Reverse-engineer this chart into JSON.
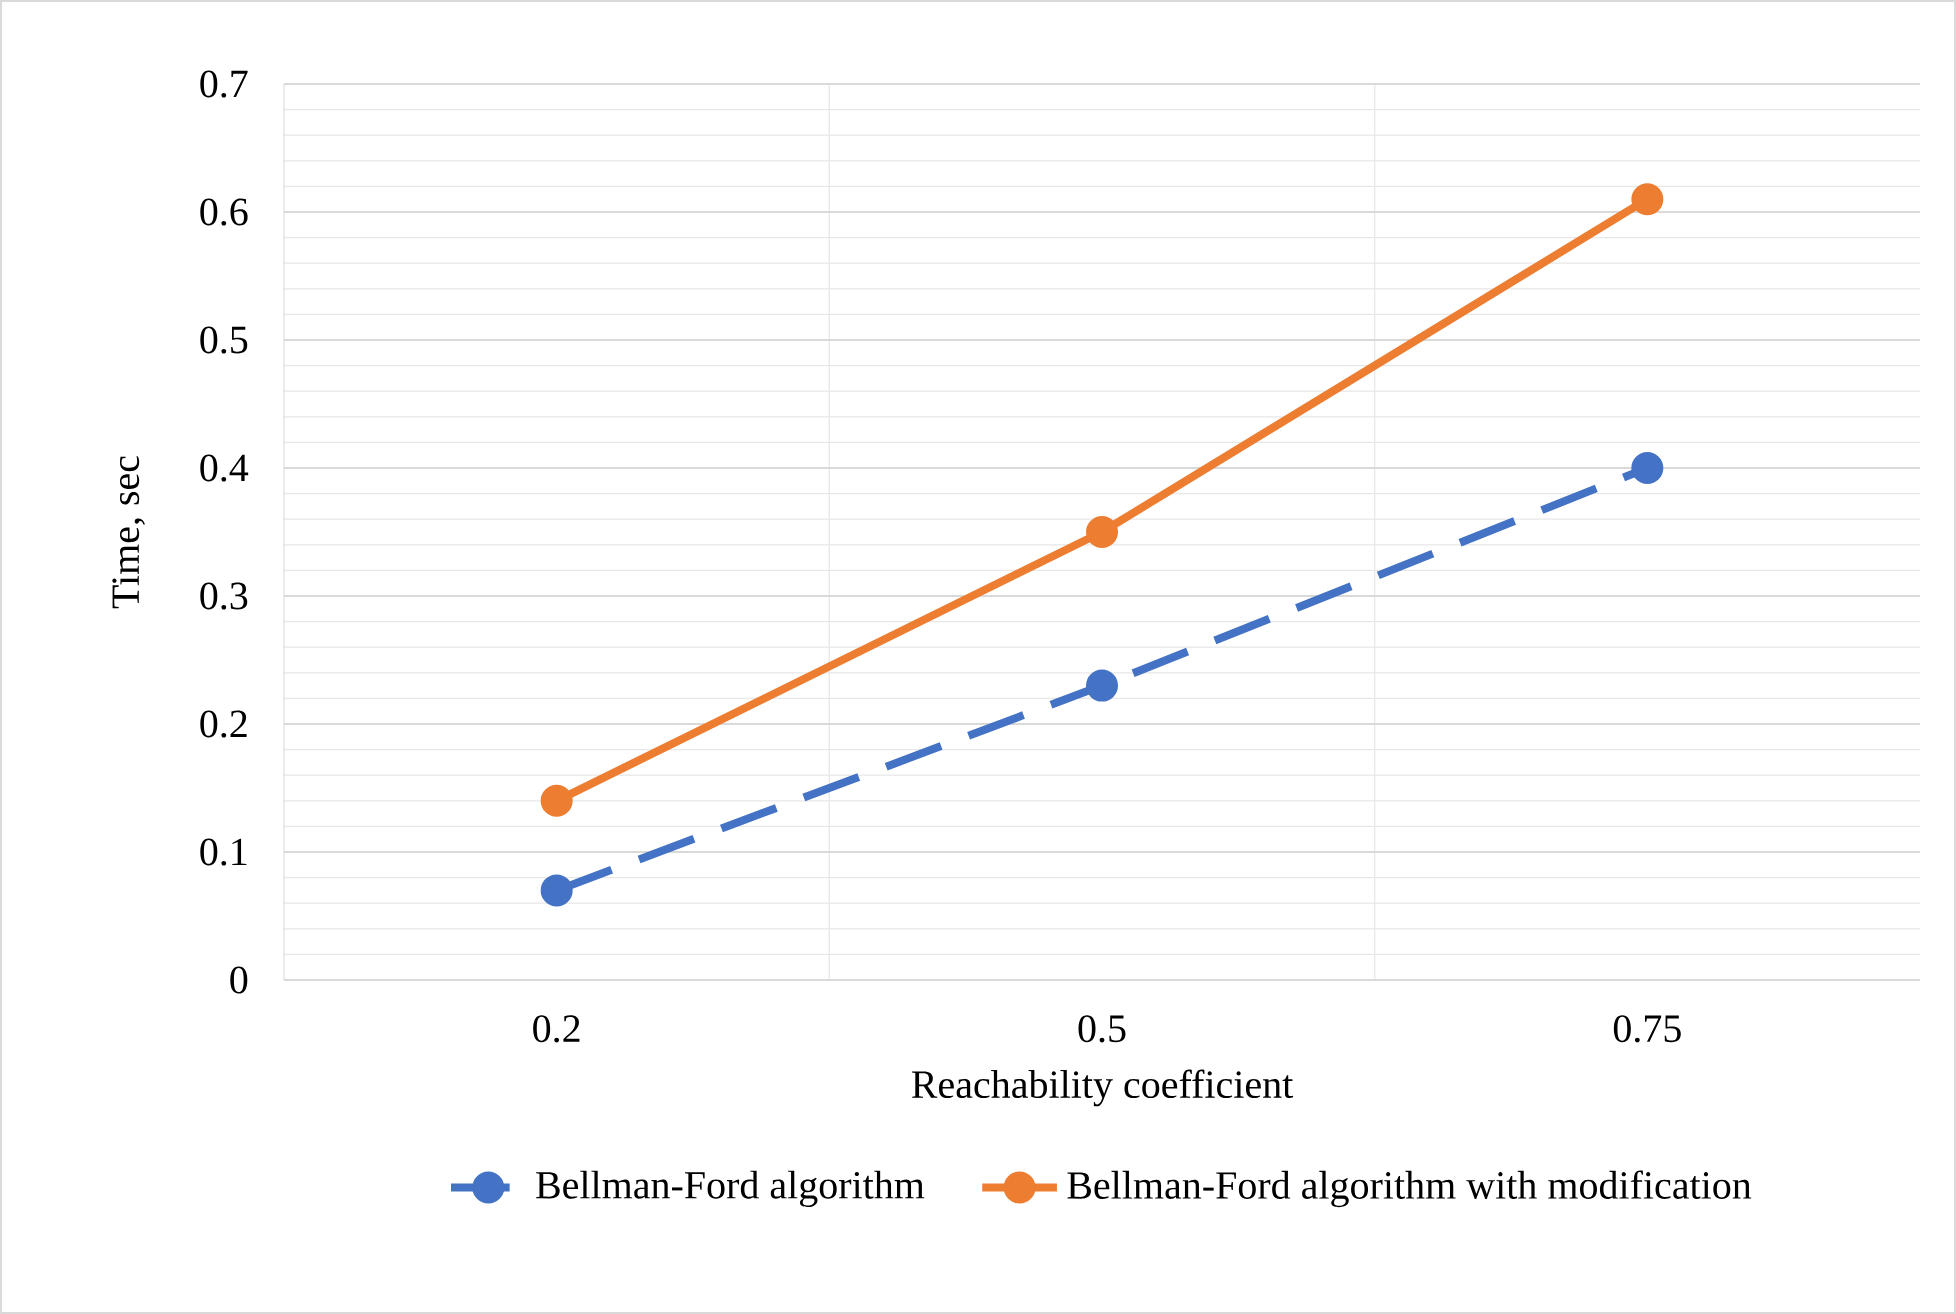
{
  "chart_data": {
    "type": "line",
    "xlabel": "Reachability coefficient",
    "ylabel": "Time, sec",
    "categories": [
      "0.2",
      "0.5",
      "0.75"
    ],
    "series": [
      {
        "name": "Bellman-Ford algorithm",
        "color": "#4472c4",
        "values": [
          0.07,
          0.23,
          0.4
        ],
        "line_style": "dashed"
      },
      {
        "name": "Bellman-Ford algorithm with modification",
        "color": "#ed7d31",
        "values": [
          0.14,
          0.35,
          0.61
        ],
        "line_style": "solid"
      }
    ],
    "ylim": [
      0,
      0.7
    ],
    "yticks": [
      0,
      0.1,
      0.2,
      0.3,
      0.4,
      0.5,
      0.6,
      0.7
    ],
    "grid": true,
    "legend": "bottom",
    "marker": "circle"
  }
}
